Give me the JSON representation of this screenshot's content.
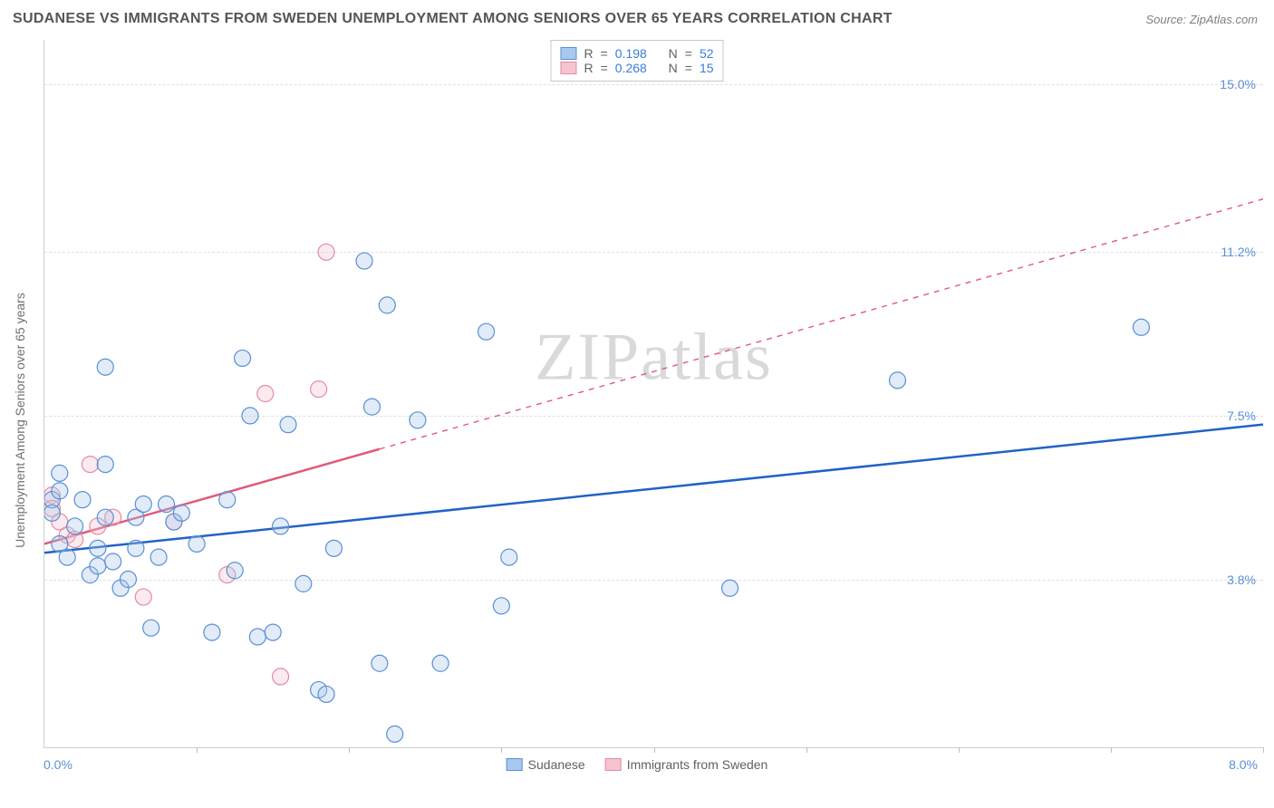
{
  "title": "SUDANESE VS IMMIGRANTS FROM SWEDEN UNEMPLOYMENT AMONG SENIORS OVER 65 YEARS CORRELATION CHART",
  "source": "Source: ZipAtlas.com",
  "y_axis_label": "Unemployment Among Seniors over 65 years",
  "watermark_a": "ZIP",
  "watermark_b": "atlas",
  "chart": {
    "type": "scatter",
    "background_color": "#ffffff",
    "grid_color": "#e0e0e0",
    "axis_color": "#d0d0d0",
    "tick_label_color": "#5a8fd6",
    "xlim": [
      0.0,
      8.0
    ],
    "ylim": [
      0.0,
      16.0
    ],
    "x_origin_label": "0.0%",
    "x_max_label": "8.0%",
    "x_tick_positions": [
      1.0,
      2.0,
      3.0,
      4.0,
      5.0,
      6.0,
      7.0,
      8.0
    ],
    "y_gridlines": [
      {
        "value": 3.8,
        "label": "3.8%"
      },
      {
        "value": 7.5,
        "label": "7.5%"
      },
      {
        "value": 11.2,
        "label": "11.2%"
      },
      {
        "value": 15.0,
        "label": "15.0%"
      }
    ],
    "marker_radius": 9,
    "marker_stroke_width": 1.2,
    "marker_fill_opacity": 0.35,
    "trend_line_width": 2.5,
    "series": [
      {
        "name": "Sudanese",
        "color_stroke": "#5a8fd6",
        "color_fill": "#a8c8ec",
        "trend_color": "#2062c7",
        "R": "0.198",
        "N": "52",
        "trend_start": [
          0.0,
          4.4
        ],
        "trend_end": [
          8.0,
          7.3
        ],
        "trend_dash_after_x": null,
        "points": [
          [
            0.05,
            5.6
          ],
          [
            0.05,
            5.3
          ],
          [
            0.1,
            6.2
          ],
          [
            0.1,
            5.8
          ],
          [
            0.1,
            4.6
          ],
          [
            0.15,
            4.3
          ],
          [
            0.2,
            5.0
          ],
          [
            0.25,
            5.6
          ],
          [
            0.3,
            3.9
          ],
          [
            0.35,
            4.1
          ],
          [
            0.35,
            4.5
          ],
          [
            0.4,
            8.6
          ],
          [
            0.4,
            6.4
          ],
          [
            0.4,
            5.2
          ],
          [
            0.45,
            4.2
          ],
          [
            0.5,
            3.6
          ],
          [
            0.55,
            3.8
          ],
          [
            0.6,
            5.2
          ],
          [
            0.6,
            4.5
          ],
          [
            0.65,
            5.5
          ],
          [
            0.7,
            2.7
          ],
          [
            0.75,
            4.3
          ],
          [
            0.8,
            5.5
          ],
          [
            0.85,
            5.1
          ],
          [
            0.9,
            5.3
          ],
          [
            1.0,
            4.6
          ],
          [
            1.1,
            2.6
          ],
          [
            1.2,
            5.6
          ],
          [
            1.25,
            4.0
          ],
          [
            1.3,
            8.8
          ],
          [
            1.35,
            7.5
          ],
          [
            1.4,
            2.5
          ],
          [
            1.5,
            2.6
          ],
          [
            1.55,
            5.0
          ],
          [
            1.6,
            7.3
          ],
          [
            1.7,
            3.7
          ],
          [
            1.8,
            1.3
          ],
          [
            1.85,
            1.2
          ],
          [
            1.9,
            4.5
          ],
          [
            2.1,
            11.0
          ],
          [
            2.15,
            7.7
          ],
          [
            2.2,
            1.9
          ],
          [
            2.25,
            10.0
          ],
          [
            2.3,
            0.3
          ],
          [
            2.45,
            7.4
          ],
          [
            2.6,
            1.9
          ],
          [
            2.9,
            9.4
          ],
          [
            3.0,
            3.2
          ],
          [
            3.05,
            4.3
          ],
          [
            4.5,
            3.6
          ],
          [
            5.6,
            8.3
          ],
          [
            7.2,
            9.5
          ]
        ]
      },
      {
        "name": "Immigrants from Sweden",
        "color_stroke": "#e28ca0",
        "color_fill": "#f4c4d0",
        "trend_color": "#e05a7a",
        "R": "0.268",
        "N": "15",
        "trend_start": [
          0.0,
          4.6
        ],
        "trend_end": [
          8.0,
          12.4
        ],
        "trend_dash_after_x": 2.2,
        "points": [
          [
            0.05,
            5.7
          ],
          [
            0.05,
            5.4
          ],
          [
            0.1,
            5.1
          ],
          [
            0.15,
            4.8
          ],
          [
            0.2,
            4.7
          ],
          [
            0.3,
            6.4
          ],
          [
            0.35,
            5.0
          ],
          [
            0.45,
            5.2
          ],
          [
            0.65,
            3.4
          ],
          [
            0.85,
            5.1
          ],
          [
            1.2,
            3.9
          ],
          [
            1.45,
            8.0
          ],
          [
            1.55,
            1.6
          ],
          [
            1.8,
            8.1
          ],
          [
            1.85,
            11.2
          ]
        ]
      }
    ]
  },
  "legend_r_label": "R",
  "legend_n_label": "N",
  "legend_eq": "="
}
